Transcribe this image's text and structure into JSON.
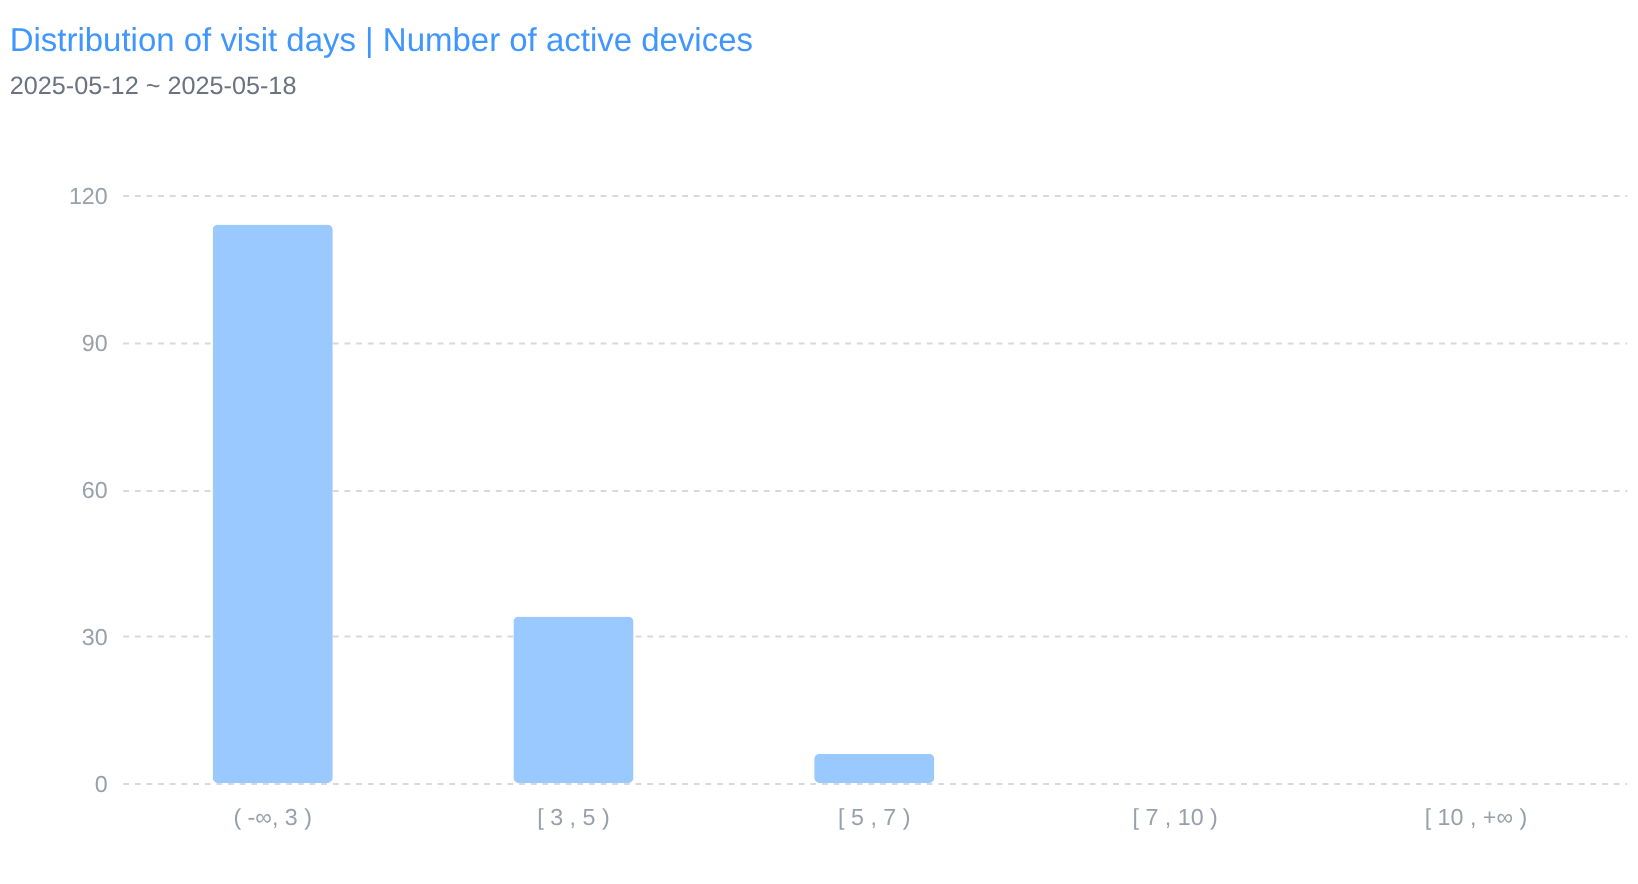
{
  "chart_data": {
    "type": "bar",
    "title": "Distribution of visit days | Number of active devices",
    "subtitle": "2025-05-12 ~ 2025-05-18",
    "categories": [
      "( -∞, 3 )",
      "[ 3 , 5 )",
      "[ 5 , 7 )",
      "[ 7 , 10 )",
      "[ 10 , +∞ )"
    ],
    "values": [
      114,
      34,
      6,
      0,
      0
    ],
    "color": "#99c9ff",
    "ylim": [
      0,
      120
    ],
    "yticks": [
      0,
      30,
      60,
      90,
      120
    ],
    "grid": "y"
  }
}
